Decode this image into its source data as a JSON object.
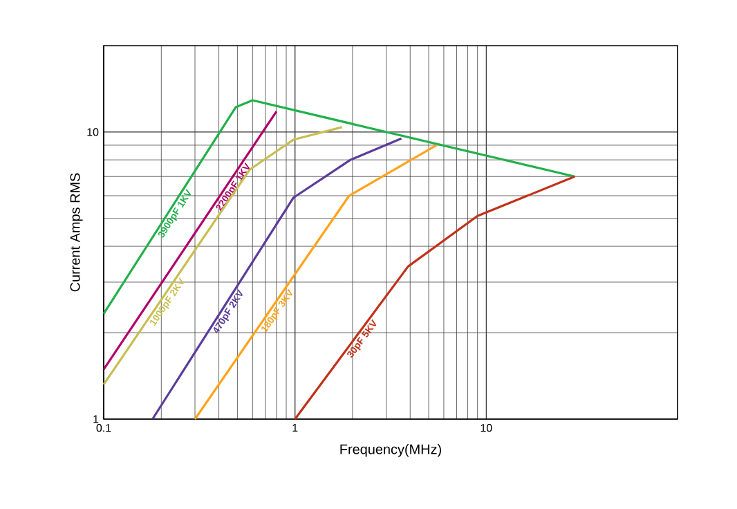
{
  "chart_data": {
    "type": "line",
    "xlabel": "Frequency(MHz)",
    "ylabel": "Current Amps RMS",
    "log": "xy",
    "grid": true,
    "legend": false,
    "marker": "none",
    "line_style": "solid",
    "xlim": [
      0.1,
      100
    ],
    "ylim": [
      1,
      20
    ],
    "xticks": [
      0.1,
      1,
      10
    ],
    "yticks": [
      1,
      10
    ],
    "series": [
      {
        "name": "3900pF 1KV",
        "color": "#22b04a",
        "x": [
          0.1,
          0.49,
          0.6,
          29
        ],
        "values": [
          2.33,
          12.2,
          12.9,
          7.0
        ]
      },
      {
        "name": "2200pF 1KV",
        "color": "#b0006a",
        "x": [
          0.1,
          0.8
        ],
        "values": [
          1.49,
          11.8
        ]
      },
      {
        "name": "1000pF 2KV",
        "color": "#c8be50",
        "x": [
          0.1,
          0.58,
          0.98,
          1.76
        ],
        "values": [
          1.32,
          7.4,
          9.4,
          10.4
        ]
      },
      {
        "name": "470pF 2KV",
        "color": "#5b3c9a",
        "x": [
          0.18,
          0.98,
          1.95,
          3.6
        ],
        "values": [
          1,
          5.9,
          8.0,
          9.5
        ]
      },
      {
        "name": "180pF 3KV",
        "color": "#ffa31a",
        "x": [
          0.3,
          1.92,
          5.5
        ],
        "values": [
          1,
          6.0,
          9.0
        ]
      },
      {
        "name": "30pF 5KV",
        "color": "#c0321a",
        "x": [
          1,
          3.9,
          9.0,
          29
        ],
        "values": [
          1,
          3.4,
          5.1,
          7.0
        ]
      }
    ]
  }
}
